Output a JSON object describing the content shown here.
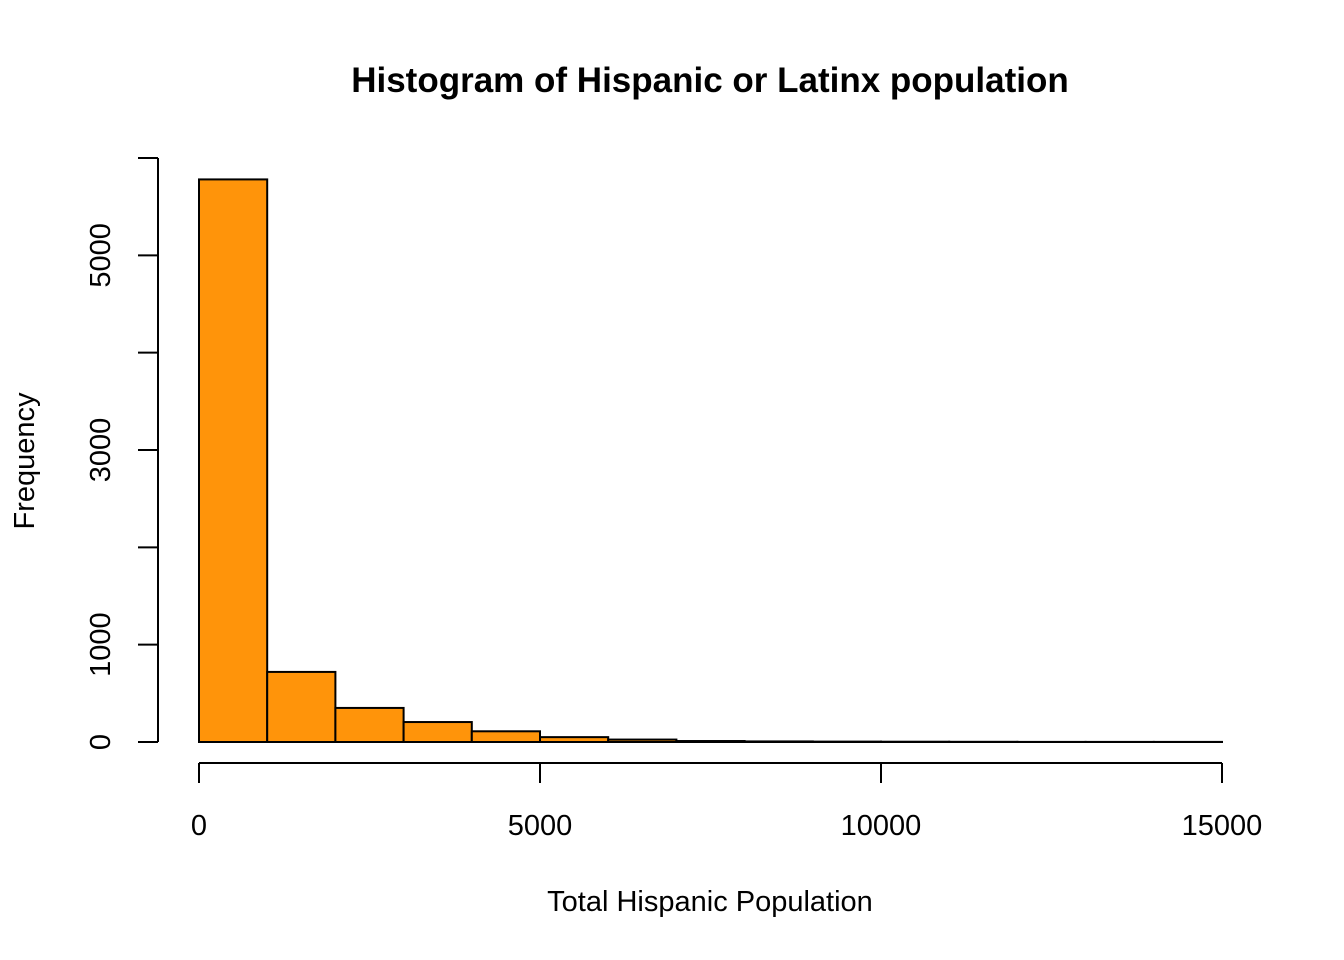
{
  "chart_data": {
    "type": "bar",
    "title": "Histogram of Hispanic or Latinx population",
    "xlabel": "Total Hispanic Population",
    "ylabel": "Frequency",
    "bar_color": "#FF940A",
    "bin_edges": [
      0,
      1000,
      2000,
      3000,
      4000,
      5000,
      6000,
      7000,
      8000,
      9000,
      10000,
      11000,
      12000,
      13000,
      14000,
      15000
    ],
    "values": [
      5780,
      720,
      350,
      205,
      110,
      50,
      25,
      10,
      6,
      4,
      3,
      2,
      1,
      1,
      1
    ],
    "xlim": [
      0,
      15000
    ],
    "ylim": [
      0,
      6000
    ],
    "x_ticks": [
      0,
      5000,
      10000,
      15000
    ],
    "x_tick_labels": [
      "0",
      "5000",
      "10000",
      "15000"
    ],
    "y_ticks": [
      0,
      1000,
      2000,
      3000,
      4000,
      5000,
      6000
    ],
    "y_tick_labels": [
      "0",
      "1000",
      "",
      "3000",
      "",
      "5000",
      ""
    ],
    "grid": false,
    "legend": "none"
  }
}
